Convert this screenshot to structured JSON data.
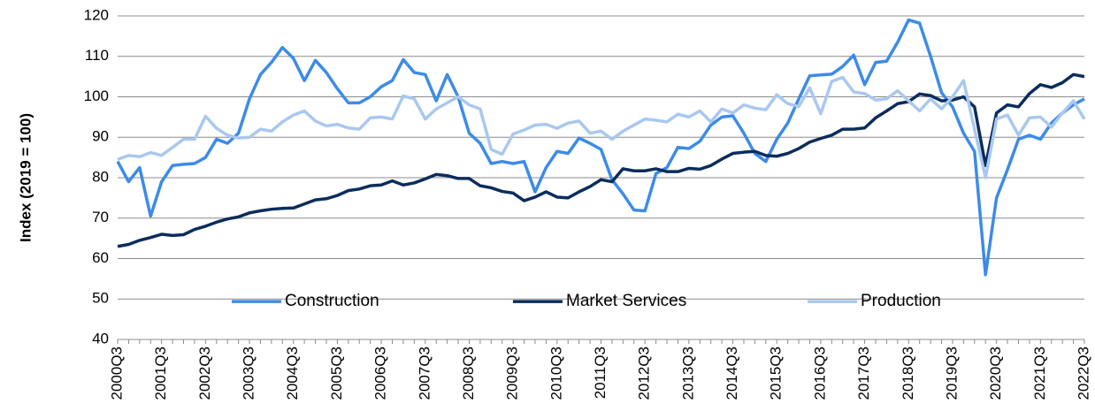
{
  "chart_data": {
    "type": "line",
    "y_label": "Index (2019 = 100)",
    "categories": [
      "2000Q3",
      null,
      null,
      null,
      "2001Q3",
      null,
      null,
      null,
      "2002Q3",
      null,
      null,
      null,
      "2003Q3",
      null,
      null,
      null,
      "2004Q3",
      null,
      null,
      null,
      "2005Q3",
      null,
      null,
      null,
      "2006Q3",
      null,
      null,
      null,
      "2007Q3",
      null,
      null,
      null,
      "2008Q3",
      null,
      null,
      null,
      "2009Q3",
      null,
      null,
      null,
      "2010Q3",
      null,
      null,
      null,
      "2011Q3",
      null,
      null,
      null,
      "2012Q3",
      null,
      null,
      null,
      "2013Q3",
      null,
      null,
      null,
      "2014Q3",
      null,
      null,
      null,
      "2015Q3",
      null,
      null,
      null,
      "2016Q3",
      null,
      null,
      null,
      "2017Q3",
      null,
      null,
      null,
      "2018Q3",
      null,
      null,
      null,
      "2019Q3",
      null,
      null,
      null,
      "2020Q3",
      null,
      null,
      null,
      "2021Q3",
      null,
      null,
      null,
      "2022Q3"
    ],
    "series": [
      {
        "name": "Construction",
        "color": "#3d8be8",
        "values": [
          84,
          79,
          82.5,
          70.5,
          79,
          83,
          83.3,
          83.5,
          85,
          89.5,
          88.5,
          91,
          99.5,
          105.5,
          108.5,
          112.2,
          109.5,
          104,
          109,
          106,
          102,
          98.5,
          98.5,
          100,
          102.5,
          104,
          109.2,
          106,
          105.5,
          99,
          105.5,
          100,
          91,
          88.5,
          83.5,
          84,
          83.5,
          84,
          76.5,
          82.5,
          86.5,
          86,
          89.8,
          88.5,
          87,
          79.5,
          76,
          72,
          71.8,
          81,
          82.5,
          87.5,
          87.2,
          89,
          93,
          95,
          95.3,
          91,
          86,
          84,
          89.5,
          93.5,
          99.5,
          105.2,
          105.4,
          105.6,
          107.5,
          110.3,
          103,
          108.5,
          108.8,
          113.5,
          119,
          118.2,
          110,
          101,
          97.5,
          91,
          86.5,
          56,
          75,
          82,
          89.5,
          90.5,
          89.5,
          93.5,
          96,
          98,
          99.5
        ]
      },
      {
        "name": "Market Services",
        "color": "#0b2d5c",
        "values": [
          63,
          63.5,
          64.5,
          65.2,
          66,
          65.7,
          65.9,
          67.2,
          68,
          69,
          69.8,
          70.3,
          71.3,
          71.8,
          72.2,
          72.4,
          72.5,
          73.5,
          74.5,
          74.8,
          75.6,
          76.8,
          77.2,
          78,
          78.2,
          79.2,
          78.2,
          78.7,
          79.7,
          80.8,
          80.5,
          79.8,
          79.8,
          78,
          77.5,
          76.6,
          76.2,
          74.3,
          75.2,
          76.5,
          75.2,
          75,
          76.5,
          77.8,
          79.5,
          79,
          82.2,
          81.7,
          81.7,
          82.2,
          81.5,
          81.5,
          82.3,
          82.1,
          83,
          84.6,
          86,
          86.3,
          86.5,
          85.5,
          85.3,
          86,
          87.2,
          88.8,
          89.7,
          90.5,
          92,
          92,
          92.3,
          94.8,
          96.5,
          98.3,
          98.8,
          100.7,
          100.3,
          99,
          99.2,
          100,
          97.5,
          83,
          96,
          98,
          97.5,
          100.8,
          103,
          102.3,
          103.5,
          105.5,
          105
        ]
      },
      {
        "name": "Production",
        "color": "#a9c8f0",
        "values": [
          84.5,
          85.5,
          85.2,
          86.2,
          85.5,
          87.5,
          89.5,
          89.5,
          95.2,
          92.2,
          90.5,
          89.8,
          90,
          92,
          91.5,
          93.8,
          95.5,
          96.5,
          94,
          92.8,
          93.2,
          92.3,
          92,
          94.8,
          95,
          94.5,
          100.2,
          99.5,
          94.5,
          97,
          98.5,
          100,
          98,
          97,
          87,
          85.8,
          90.8,
          91.8,
          93,
          93.2,
          92.2,
          93.5,
          94,
          91,
          91.5,
          89.5,
          91.5,
          93,
          94.5,
          94.2,
          93.8,
          95.7,
          95,
          96.5,
          93.8,
          97,
          96,
          98,
          97.2,
          96.8,
          100.5,
          98.3,
          97.6,
          102.2,
          95.8,
          103.8,
          104.8,
          101.2,
          100.8,
          99.2,
          99.5,
          101.5,
          99,
          96.5,
          99.5,
          97,
          100,
          104,
          92,
          80,
          94.5,
          95.5,
          90.5,
          94.8,
          95,
          92.5,
          96,
          99,
          94.5
        ]
      }
    ],
    "ylim": [
      40,
      120
    ],
    "yticks": [
      40,
      50,
      60,
      70,
      80,
      90,
      100,
      110,
      120
    ],
    "grid": true,
    "legend": "bottom"
  }
}
